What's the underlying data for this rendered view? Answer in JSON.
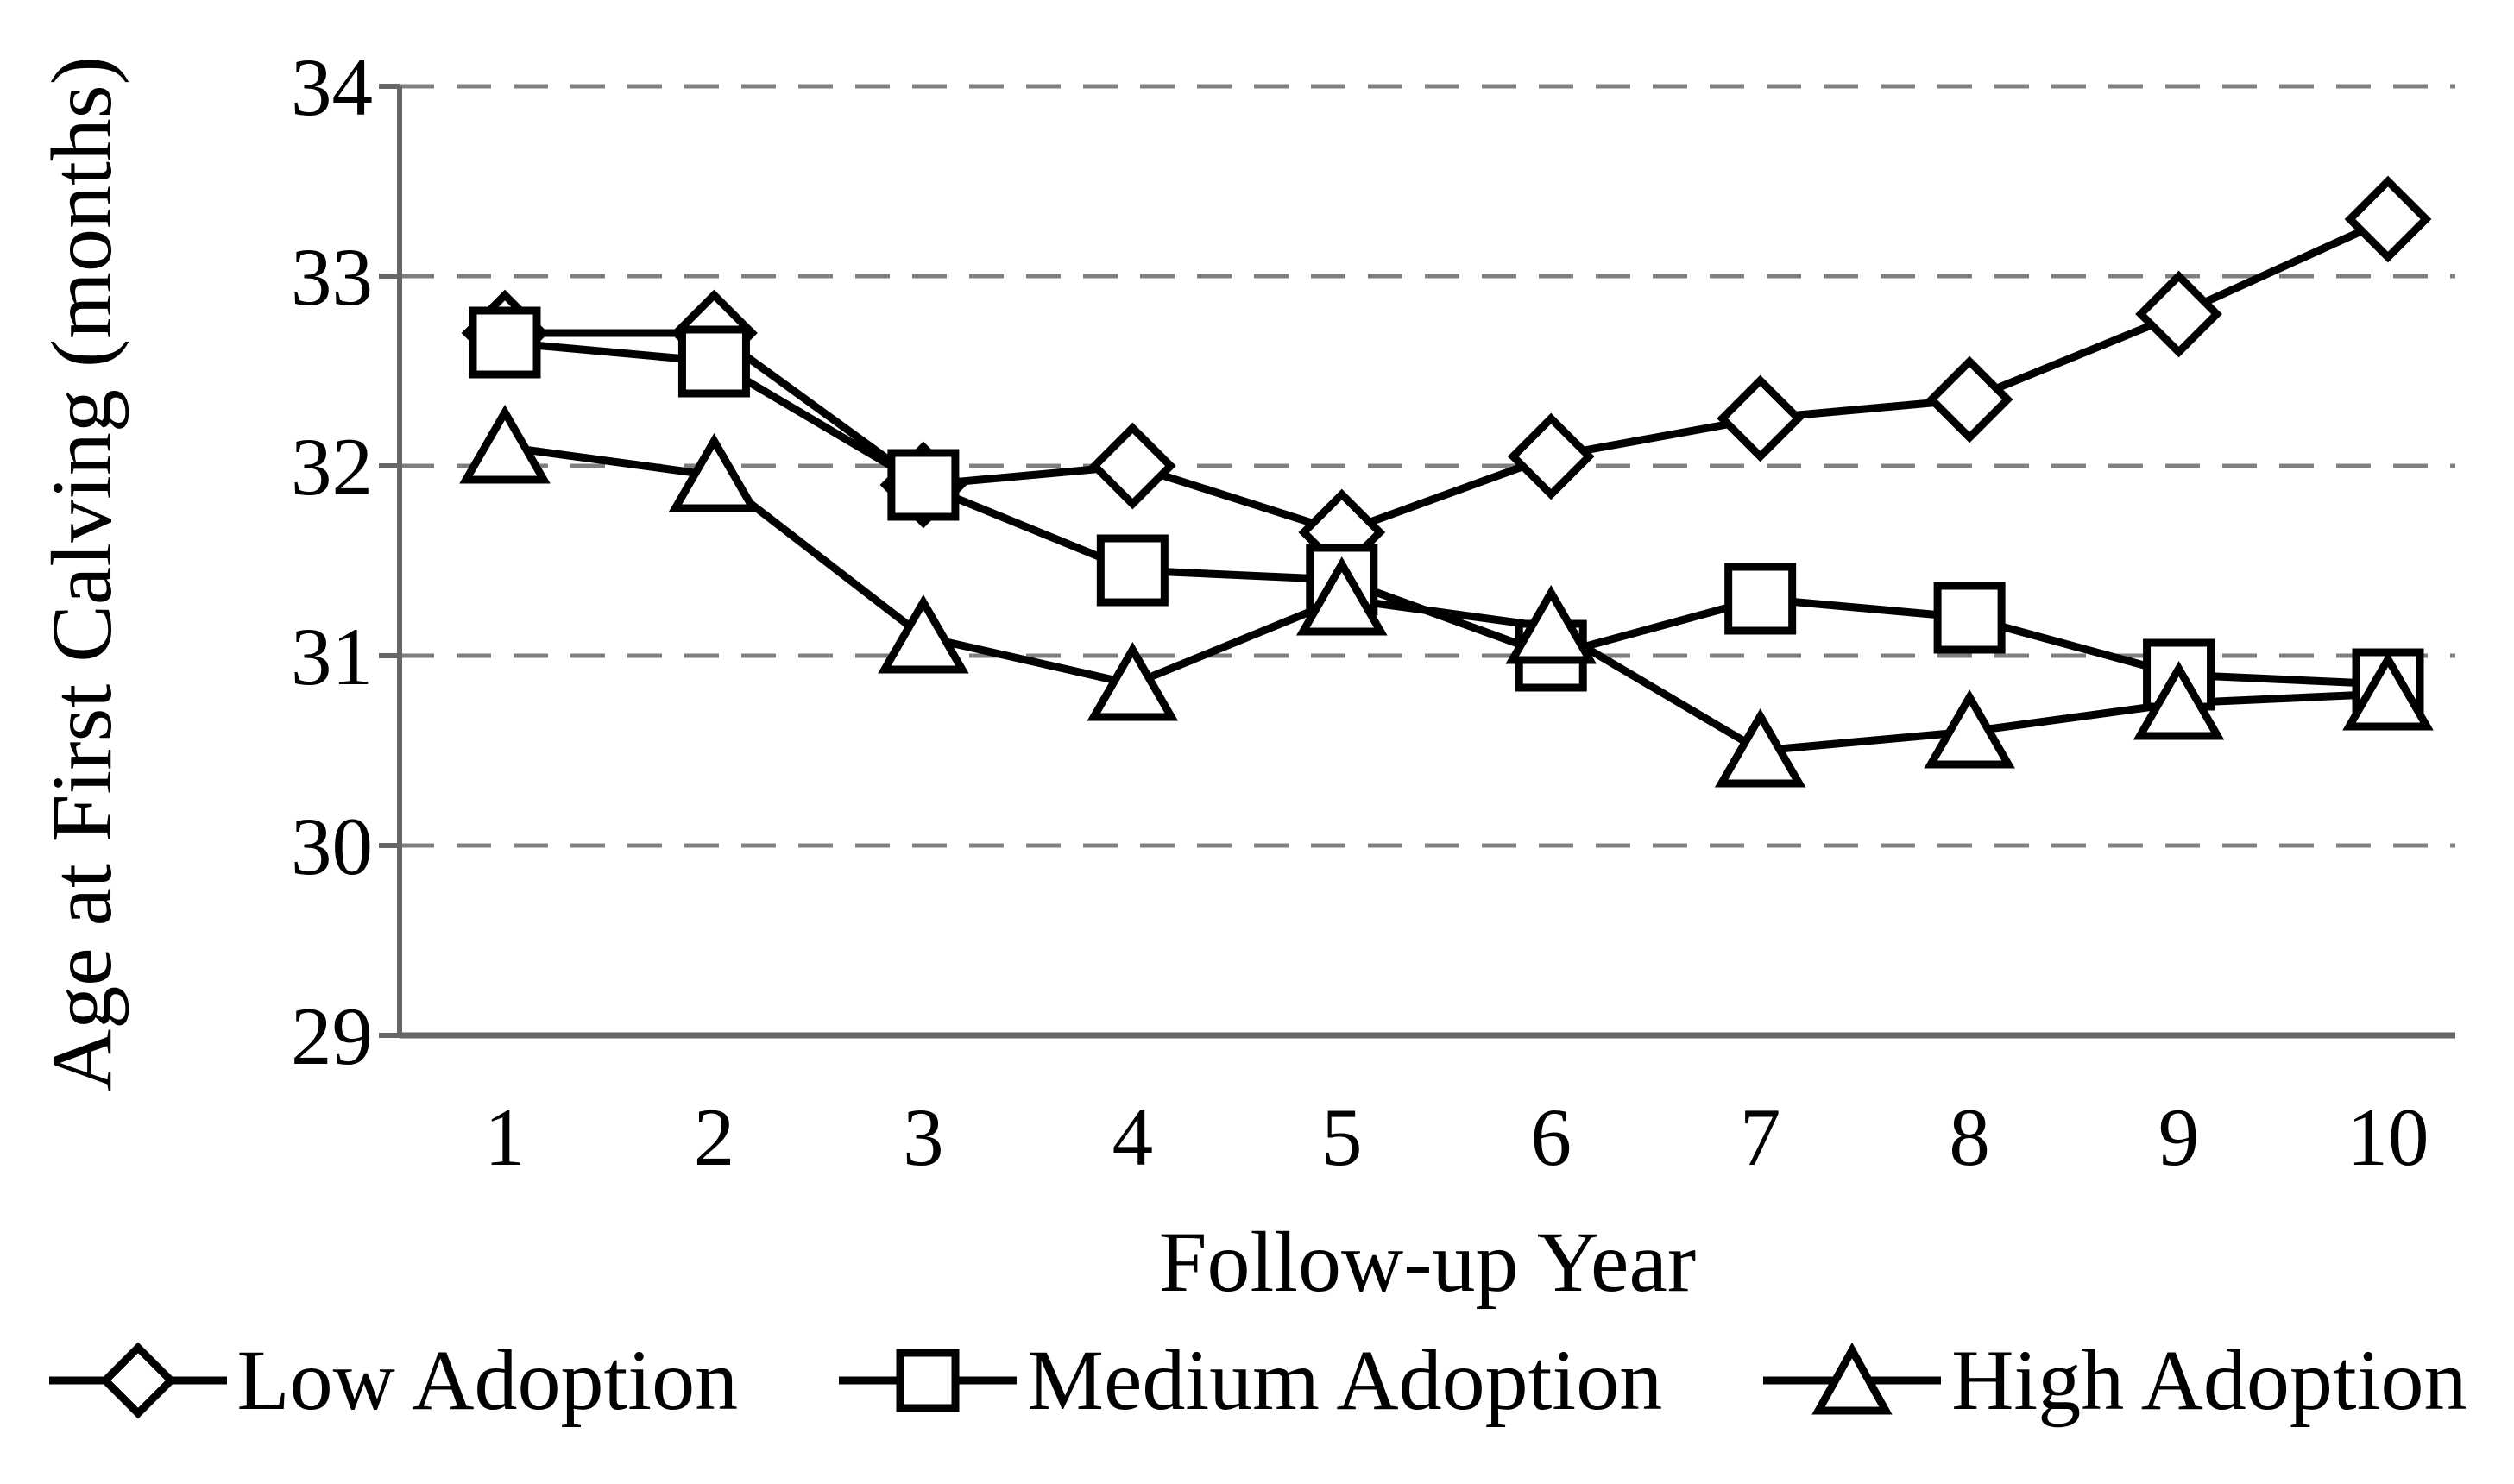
{
  "chart_data": {
    "type": "line",
    "title": "",
    "xlabel": "Follow-up Year",
    "ylabel": "Age at First Calving (months)",
    "categories": [
      1,
      2,
      3,
      4,
      5,
      6,
      7,
      8,
      9,
      10
    ],
    "ylim": [
      29,
      34
    ],
    "yticks": [
      29,
      30,
      31,
      32,
      33,
      34
    ],
    "grid": "horizontal dashed gridlines at each y tick",
    "legend_position": "bottom",
    "series": [
      {
        "name": "Low Adoption",
        "marker": "diamond",
        "values": [
          32.7,
          32.7,
          31.9,
          32.0,
          31.65,
          32.05,
          32.25,
          32.35,
          32.8,
          33.3
        ]
      },
      {
        "name": "Medium Adoption",
        "marker": "square",
        "values": [
          32.65,
          32.55,
          31.9,
          31.45,
          31.4,
          31.0,
          31.3,
          31.2,
          30.9,
          30.85
        ]
      },
      {
        "name": "High Adoption",
        "marker": "triangle",
        "values": [
          32.1,
          31.95,
          31.1,
          30.85,
          31.3,
          31.15,
          30.5,
          30.6,
          30.75,
          30.8
        ]
      }
    ],
    "colors": {
      "series_line": "#000000",
      "marker_fill": "#ffffff",
      "marker_stroke": "#000000",
      "gridline": "#7f7f7f",
      "axis_line": "#666666",
      "text": "#000000",
      "background": "#ffffff"
    }
  }
}
